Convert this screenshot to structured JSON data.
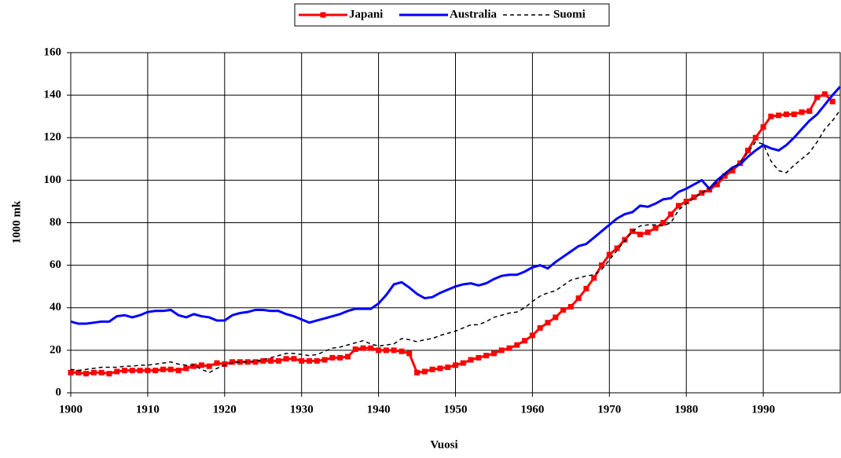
{
  "chart_data": {
    "type": "line",
    "x_label": "Vuosi",
    "y_label": "1000 mk",
    "x": [
      1900,
      1901,
      1902,
      1903,
      1904,
      1905,
      1906,
      1907,
      1908,
      1909,
      1910,
      1911,
      1912,
      1913,
      1914,
      1915,
      1916,
      1917,
      1918,
      1919,
      1920,
      1921,
      1922,
      1923,
      1924,
      1925,
      1926,
      1927,
      1928,
      1929,
      1930,
      1931,
      1932,
      1933,
      1934,
      1935,
      1936,
      1937,
      1938,
      1939,
      1940,
      1941,
      1942,
      1943,
      1944,
      1945,
      1946,
      1947,
      1948,
      1949,
      1950,
      1951,
      1952,
      1953,
      1954,
      1955,
      1956,
      1957,
      1958,
      1959,
      1960,
      1961,
      1962,
      1963,
      1964,
      1965,
      1966,
      1967,
      1968,
      1969,
      1970,
      1971,
      1972,
      1973,
      1974,
      1975,
      1976,
      1977,
      1978,
      1979,
      1980,
      1981,
      1982,
      1983,
      1984,
      1985,
      1986,
      1987,
      1988,
      1989,
      1990,
      1991,
      1992,
      1993,
      1994,
      1995,
      1996,
      1997,
      1998,
      1999,
      2000
    ],
    "series": [
      {
        "name": "Japani",
        "color": "#ff0000",
        "marker": "square",
        "dash": false,
        "values": [
          9.5,
          9.5,
          9,
          9.5,
          9.5,
          9,
          10,
          10.5,
          10.5,
          10.5,
          10.5,
          10.5,
          11,
          11,
          10.5,
          11.5,
          12.5,
          13,
          12.5,
          14,
          13.5,
          14.5,
          14.5,
          14.5,
          14.5,
          15,
          15,
          15,
          16,
          16,
          15,
          15,
          15,
          15.5,
          16.5,
          16.5,
          17,
          20.5,
          21,
          21,
          20,
          20,
          20,
          19.5,
          18.5,
          9.5,
          10,
          11,
          11.5,
          12,
          13,
          14,
          15.5,
          16.5,
          17.5,
          18.5,
          20,
          21,
          22.5,
          24.5,
          27,
          30.5,
          33,
          35.5,
          39,
          40.5,
          44.5,
          49,
          54,
          60,
          65,
          68,
          72,
          76,
          74.5,
          75.5,
          77.5,
          80,
          84,
          88,
          90,
          92,
          94,
          95.5,
          98,
          102,
          104.5,
          108,
          114,
          120,
          125,
          130,
          130.5,
          131,
          131,
          132,
          132.5,
          139,
          140.5,
          137,
          null
        ]
      },
      {
        "name": "Australia",
        "color": "#0000ff",
        "marker": "none",
        "dash": false,
        "values": [
          33.5,
          32.5,
          32.5,
          33,
          33.5,
          33.5,
          36,
          36.5,
          35.5,
          36.5,
          38,
          38.5,
          38.5,
          39,
          36.5,
          35.5,
          37,
          36,
          35.5,
          34,
          34,
          36.5,
          37.5,
          38,
          39,
          39,
          38.5,
          38.5,
          37,
          36,
          34.5,
          33,
          34,
          35,
          36,
          37,
          38.5,
          39.5,
          39.5,
          39.5,
          42,
          46,
          51,
          52,
          49.5,
          46.5,
          44.5,
          45,
          47,
          48.5,
          50,
          51,
          51.5,
          50.5,
          51.5,
          53.5,
          55,
          55.5,
          55.5,
          57,
          59,
          60,
          58.5,
          61.5,
          64,
          66.5,
          69,
          70,
          73,
          76,
          79,
          82,
          84,
          85,
          88,
          87.5,
          89,
          91,
          91.5,
          94.5,
          96,
          98,
          100,
          96,
          100,
          103,
          106,
          107.5,
          111,
          114,
          116.5,
          115,
          114,
          116.5,
          120,
          124,
          128,
          131,
          135.5,
          140,
          144
        ]
      },
      {
        "name": "Suomi",
        "color": "#000000",
        "marker": "none",
        "dash": true,
        "values": [
          11,
          10.5,
          11,
          11.5,
          12,
          12,
          12,
          12.5,
          12.5,
          13,
          13,
          13.5,
          14,
          14.5,
          13.5,
          13,
          13,
          11,
          9.5,
          11.5,
          13,
          14,
          14.5,
          14.5,
          15,
          15.5,
          16.5,
          17.5,
          18.5,
          18.5,
          18,
          17.5,
          18,
          19.5,
          21,
          21.5,
          22.5,
          23.5,
          24.5,
          23,
          22,
          22.5,
          23,
          25.5,
          25,
          24,
          25,
          25.5,
          27,
          28,
          29,
          30.5,
          32,
          32,
          33.5,
          35.5,
          36.5,
          37.5,
          38,
          40,
          43,
          45.5,
          47,
          48,
          50.5,
          53,
          54,
          55,
          55.5,
          58,
          62.5,
          67,
          71.5,
          76,
          78.5,
          79,
          79,
          78.5,
          80,
          86,
          89,
          91.5,
          94,
          96.5,
          99,
          102.5,
          105.5,
          108.5,
          113,
          118,
          117,
          109,
          104.5,
          103.5,
          107,
          110,
          113,
          118,
          124,
          128,
          133
        ]
      }
    ],
    "xlim": [
      1900,
      2000
    ],
    "xticks": [
      1900,
      1910,
      1920,
      1930,
      1940,
      1950,
      1960,
      1970,
      1980,
      1990
    ],
    "ylim": [
      0,
      160
    ],
    "yticks": [
      0,
      20,
      40,
      60,
      80,
      100,
      120,
      140,
      160
    ],
    "grid": true,
    "legend": "top"
  }
}
